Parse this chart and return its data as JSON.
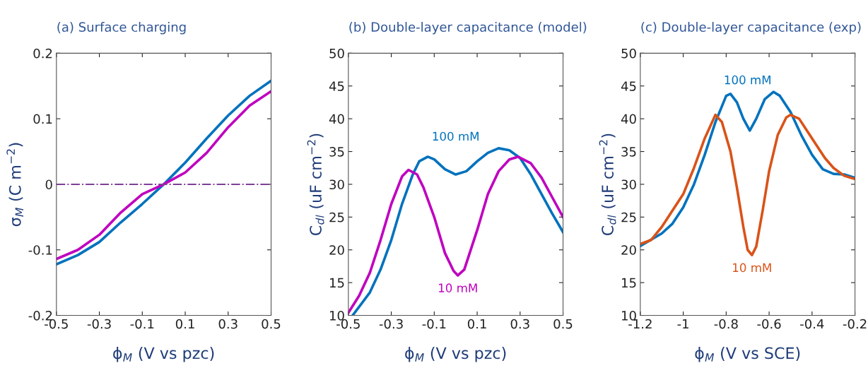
{
  "chart_data": [
    {
      "type": "line",
      "title": "(a) Surface charging",
      "xlabel": "ϕ$_{M}$ (V vs pzc)",
      "ylabel": "σ$_{M}$ (C m$^{−2}$)",
      "xlim": [
        -0.5,
        0.5
      ],
      "xticks": [
        -0.5,
        -0.3,
        -0.1,
        0.1,
        0.3,
        0.5
      ],
      "ylim": [
        -0.2,
        0.2
      ],
      "yticks": [
        -0.2,
        -0.1,
        0,
        0.1,
        0.2
      ],
      "grid": false,
      "legend": false,
      "x": [
        -0.5,
        -0.4,
        -0.3,
        -0.2,
        -0.1,
        0,
        0.1,
        0.2,
        0.3,
        0.4,
        0.5
      ],
      "series": [
        {
          "color": "#0072bd",
          "values": [
            -0.122,
            -0.108,
            -0.088,
            -0.058,
            -0.03,
            0,
            0.033,
            0.07,
            0.105,
            0.135,
            0.158
          ]
        },
        {
          "color": "#bf00bf",
          "values": [
            -0.114,
            -0.1,
            -0.077,
            -0.043,
            -0.015,
            0,
            0.018,
            0.048,
            0.087,
            0.12,
            0.142
          ]
        }
      ],
      "ref_lines": [
        {
          "axis": "y",
          "value": 0,
          "color": "#7f3f98",
          "line_style": "dashdot"
        }
      ]
    },
    {
      "type": "line",
      "title": "(b) Double-layer capacitance (model)",
      "xlabel": "ϕ$_{M}$ (V vs pzc)",
      "ylabel": "C$_{dl}$ (uF cm$^{−2}$)",
      "xlim": [
        -0.5,
        0.5
      ],
      "xticks": [
        -0.5,
        -0.3,
        -0.1,
        0.1,
        0.3,
        0.5
      ],
      "ylim": [
        10,
        50
      ],
      "yticks": [
        10,
        15,
        20,
        25,
        30,
        35,
        40,
        45,
        50
      ],
      "grid": false,
      "legend": false,
      "series": [
        {
          "name": "100 mM",
          "color": "#0072bd",
          "x": [
            -0.48,
            -0.4,
            -0.35,
            -0.3,
            -0.25,
            -0.2,
            -0.17,
            -0.13,
            -0.1,
            -0.05,
            0,
            0.05,
            0.1,
            0.15,
            0.2,
            0.25,
            0.3,
            0.35,
            0.4,
            0.45,
            0.5
          ],
          "values": [
            10,
            13.5,
            17,
            21.5,
            27,
            31.5,
            33.5,
            34.2,
            33.8,
            32.3,
            31.5,
            32,
            33.5,
            34.8,
            35.5,
            35.2,
            34,
            31.5,
            28.5,
            25.5,
            22.7
          ]
        },
        {
          "name": "10 mM",
          "color": "#bf00bf",
          "x": [
            -0.5,
            -0.45,
            -0.4,
            -0.35,
            -0.3,
            -0.25,
            -0.22,
            -0.18,
            -0.15,
            -0.1,
            -0.05,
            -0.01,
            0.01,
            0.04,
            0.1,
            0.15,
            0.2,
            0.25,
            0.29,
            0.35,
            0.4,
            0.45,
            0.5
          ],
          "values": [
            10.4,
            13,
            16.5,
            21.5,
            27,
            31.2,
            32.2,
            31.5,
            29.5,
            25,
            19.5,
            16.8,
            16.1,
            17,
            23,
            28.5,
            32,
            33.8,
            34.2,
            33.2,
            31,
            28,
            25
          ]
        }
      ]
    },
    {
      "type": "line",
      "title": "(c) Double-layer capacitance (exp)",
      "xlabel": "ϕ$_{M}$ (V vs SCE)",
      "ylabel": "C$_{dl}$ (uF cm$^{−2}$)",
      "xlim": [
        -1.2,
        -0.2
      ],
      "xticks": [
        -1.2,
        -1,
        -0.8,
        -0.6,
        -0.4,
        -0.2
      ],
      "ylim": [
        10,
        50
      ],
      "yticks": [
        10,
        15,
        20,
        25,
        30,
        35,
        40,
        45,
        50
      ],
      "grid": false,
      "legend": false,
      "series": [
        {
          "name": "100 mM",
          "color": "#0072bd",
          "x": [
            -1.2,
            -1.1,
            -1.05,
            -1.0,
            -0.95,
            -0.9,
            -0.85,
            -0.8,
            -0.78,
            -0.75,
            -0.72,
            -0.69,
            -0.66,
            -0.62,
            -0.58,
            -0.55,
            -0.5,
            -0.45,
            -0.4,
            -0.35,
            -0.3,
            -0.25,
            -0.2
          ],
          "values": [
            20.6,
            22.5,
            24,
            26.5,
            30,
            34.5,
            39.5,
            43.5,
            43.8,
            42.5,
            40,
            38.2,
            40,
            43,
            44.1,
            43.5,
            41,
            37.5,
            34.5,
            32.3,
            31.6,
            31.5,
            31
          ]
        },
        {
          "name": "10 mM",
          "color": "#d95319",
          "x": [
            -1.2,
            -1.15,
            -1.1,
            -1.05,
            -1.0,
            -0.95,
            -0.9,
            -0.85,
            -0.82,
            -0.78,
            -0.75,
            -0.72,
            -0.7,
            -0.68,
            -0.66,
            -0.63,
            -0.6,
            -0.56,
            -0.52,
            -0.5,
            -0.46,
            -0.42,
            -0.38,
            -0.34,
            -0.3,
            -0.25,
            -0.2
          ],
          "values": [
            20.9,
            21.5,
            23.5,
            26,
            28.5,
            32.5,
            37,
            40.6,
            39.5,
            35,
            29.5,
            23.5,
            20,
            19.2,
            20.5,
            26,
            32,
            37.5,
            40.2,
            40.6,
            40,
            38,
            36,
            34,
            32.5,
            31.3,
            30.8
          ]
        }
      ]
    }
  ]
}
